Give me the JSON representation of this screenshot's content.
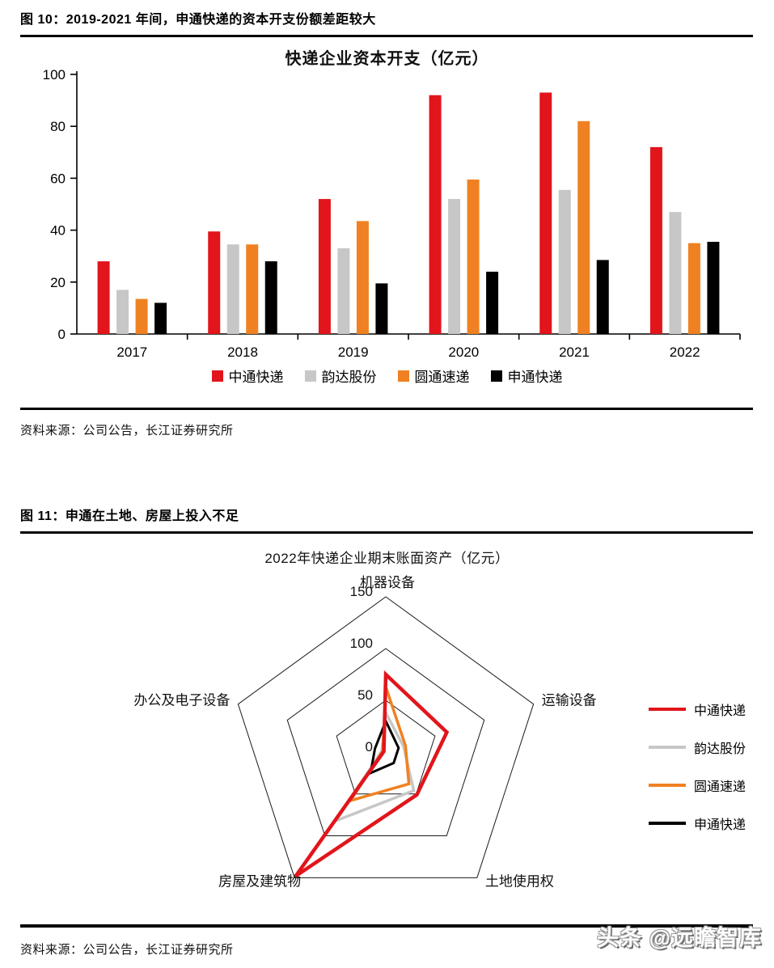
{
  "page": {
    "watermark": "头条 @远瞻智库"
  },
  "figure10": {
    "caption": "图  10：2019-2021 年间，申通快递的资本开支份额差距较大",
    "source": "资料来源：公司公告，长江证券研究所"
  },
  "figure11": {
    "caption": "图  11：申通在土地、房屋上投入不足",
    "source": "资料来源：公司公告，长江证券研究所"
  },
  "colors": {
    "zto_red": "#e1151b",
    "yunda_gray": "#c7c7c7",
    "yto_orange": "#f08122",
    "sto_black": "#000000"
  },
  "chart_data": [
    {
      "type": "bar",
      "title": "快递企业资本开支（亿元）",
      "categories": [
        "2017",
        "2018",
        "2019",
        "2020",
        "2021",
        "2022"
      ],
      "series": [
        {
          "name": "中通快递",
          "color": "#e1151b",
          "values": [
            28,
            39.5,
            52,
            92,
            93,
            72
          ]
        },
        {
          "name": "韵达股份",
          "color": "#c7c7c7",
          "values": [
            17,
            34.5,
            33,
            52,
            55.5,
            47
          ]
        },
        {
          "name": "圆通速递",
          "color": "#f08122",
          "values": [
            13.5,
            34.5,
            43.5,
            59.5,
            82,
            35
          ]
        },
        {
          "name": "申通快递",
          "color": "#000000",
          "values": [
            12,
            28,
            19.5,
            24,
            28.5,
            35.5
          ]
        }
      ],
      "xlabel": "",
      "ylabel": "",
      "ylim": [
        0,
        100
      ],
      "yticks": [
        0,
        20,
        40,
        60,
        80,
        100
      ],
      "grid": false,
      "legend_position": "bottom"
    },
    {
      "type": "radar",
      "title": "2022年快递企业期末账面资产（亿元）",
      "axes": [
        "机器设备",
        "运输设备",
        "土地使用权",
        "房屋及建筑物",
        "办公及电子设备"
      ],
      "ring_labels": [
        150,
        100,
        50,
        0
      ],
      "rmax": 150,
      "series": [
        {
          "name": "中通快递",
          "color": "#e1151b",
          "values": [
            75,
            62,
            51,
            148,
            2
          ]
        },
        {
          "name": "韵达股份",
          "color": "#c7c7c7",
          "values": [
            38,
            18,
            46,
            82,
            4
          ]
        },
        {
          "name": "圆通速递",
          "color": "#f08122",
          "values": [
            63,
            20,
            38,
            58,
            3
          ]
        },
        {
          "name": "申通快递",
          "color": "#000000",
          "values": [
            30,
            13,
            13,
            25,
            11
          ]
        }
      ],
      "grid": false,
      "legend_position": "right"
    }
  ]
}
